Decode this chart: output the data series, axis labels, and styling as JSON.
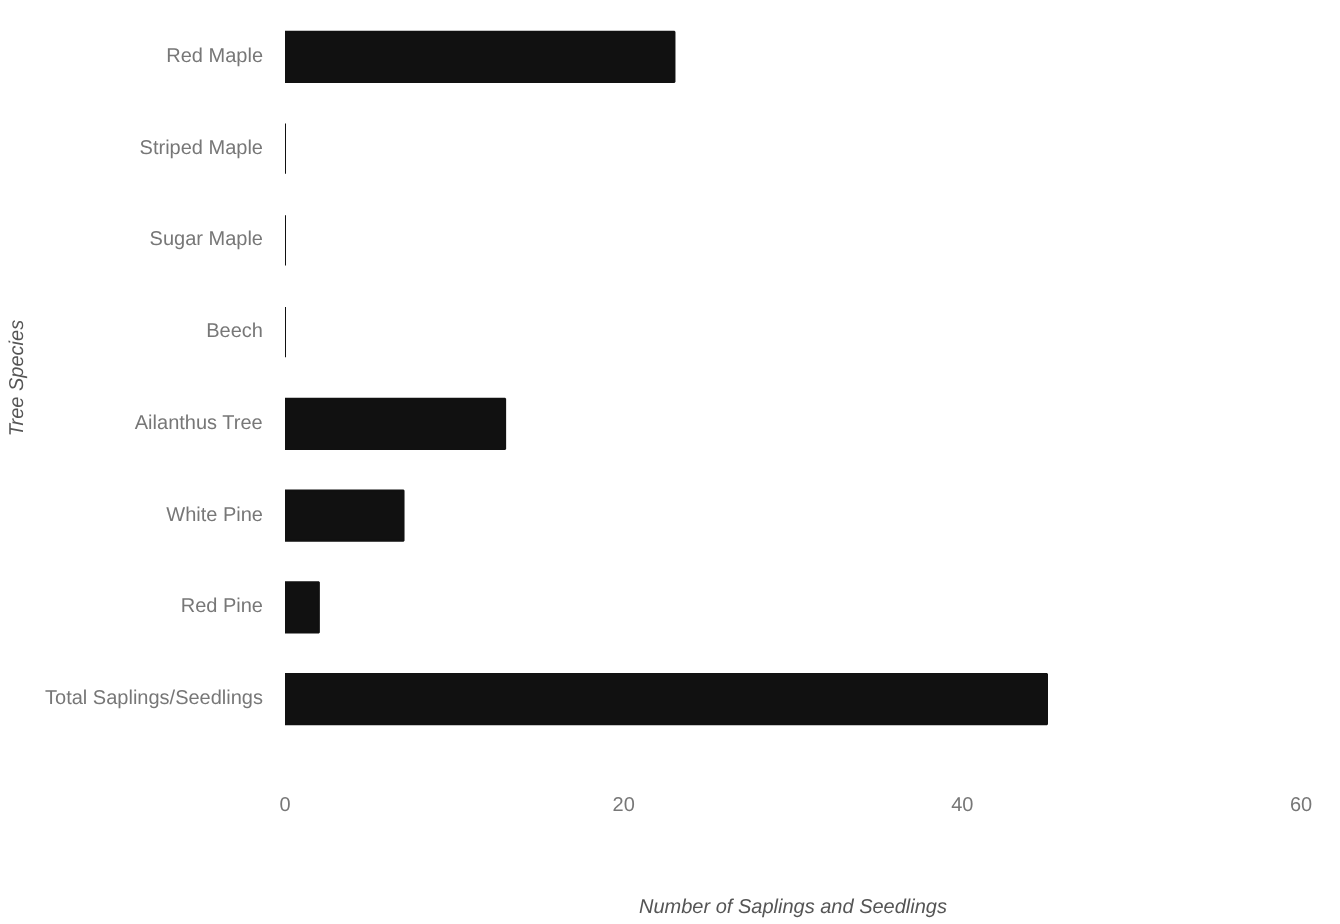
{
  "chart_data": {
    "type": "bar",
    "orientation": "horizontal",
    "xlabel": "Number of Saplings and Seedlings",
    "ylabel": "Tree Species",
    "categories": [
      "Red Maple",
      "Striped Maple",
      "Sugar Maple",
      "Beech",
      "Ailanthus Tree",
      "White Pine",
      "Red Pine",
      "Total Saplings/Seedlings"
    ],
    "values": [
      23,
      0,
      0,
      0,
      13,
      7,
      2,
      45
    ],
    "color": "#111111",
    "xlim": [
      0,
      60
    ],
    "xticks": [
      0,
      20,
      40,
      60
    ],
    "grid": false
  }
}
